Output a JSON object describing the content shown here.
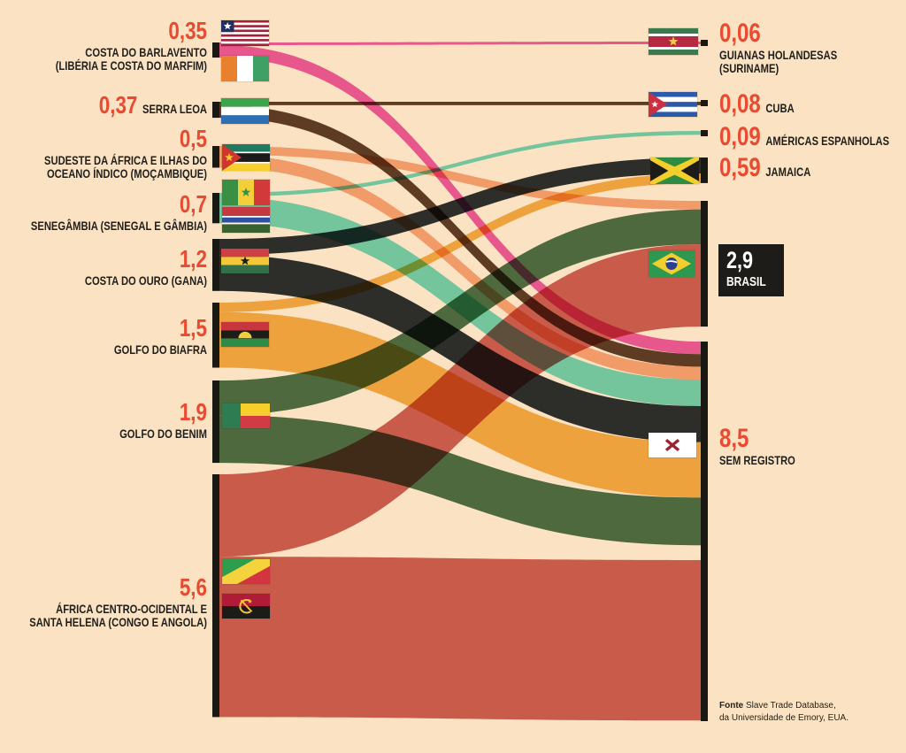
{
  "background": "#fae2c2",
  "palette": {
    "number_color": "#e84b31",
    "label_color": "#201f1b",
    "node_bar_color": "#191813",
    "brasil_box_bg": "#1d1c19",
    "brasil_box_text": "#ffffff"
  },
  "chart_data": {
    "type": "sankey",
    "description": "Fluxos do tráfico de escravos (em milhões de pessoas) de regiões africanas para destinos nas Américas",
    "sources": [
      {
        "id": "barlavento",
        "value": 0.35,
        "value_label": "0,35",
        "label_lines": [
          "COSTA DO BARLAVENTO",
          "(LIBÉRIA E COSTA DO MARFIM)"
        ],
        "flags": [
          "liberia",
          "ivory-coast"
        ],
        "color": "#e8578c",
        "inline": false
      },
      {
        "id": "serra-leoa",
        "value": 0.37,
        "value_label": "0,37",
        "label_lines": [
          "SERRA LEOA"
        ],
        "flags": [
          "sierra-leone"
        ],
        "color": "#5e3b22",
        "inline": true
      },
      {
        "id": "sudeste-africa",
        "value": 0.5,
        "value_label": "0,5",
        "label_lines": [
          "SUDESTE DA ÁFRICA E ILHAS DO",
          "OCEANO ÍNDICO (MOÇAMBIQUE)"
        ],
        "flags": [
          "mozambique"
        ],
        "color": "#f19b68",
        "inline": false
      },
      {
        "id": "senegambia",
        "value": 0.7,
        "value_label": "0,7",
        "label_lines": [
          "SENEGÂMBIA (SENEGAL E GÂMBIA)"
        ],
        "flags": [
          "senegal",
          "gambia"
        ],
        "color": "#74c59c",
        "inline": false
      },
      {
        "id": "costa-do-ouro",
        "value": 1.2,
        "value_label": "1,2",
        "label_lines": [
          "COSTA DO OURO (GANA)"
        ],
        "flags": [
          "ghana"
        ],
        "color": "#2d2c28",
        "inline": false
      },
      {
        "id": "golfo-biafra",
        "value": 1.5,
        "value_label": "1,5",
        "label_lines": [
          "GOLFO DO BIAFRA"
        ],
        "flags": [
          "biafra"
        ],
        "color": "#eea23e",
        "inline": false
      },
      {
        "id": "golfo-benim",
        "value": 1.9,
        "value_label": "1,9",
        "label_lines": [
          "GOLFO DO BENIM"
        ],
        "flags": [
          "benin"
        ],
        "color": "#4d693d",
        "inline": false
      },
      {
        "id": "africa-centro",
        "value": 5.6,
        "value_label": "5,6",
        "label_lines": [
          "ÁFRICA CENTRO-OCIDENTAL E",
          "SANTA HELENA (CONGO E ANGOLA)"
        ],
        "flags": [
          "congo",
          "angola"
        ],
        "color": "#c85b49",
        "inline": false
      }
    ],
    "targets": [
      {
        "id": "suriname",
        "value": 0.06,
        "value_label": "0,06",
        "label_lines": [
          "GUIANAS HOLANDESAS",
          "(SURINAME)"
        ],
        "flags": [
          "suriname"
        ],
        "inline": false,
        "boxed": false
      },
      {
        "id": "cuba",
        "value": 0.08,
        "value_label": "0,08",
        "label_lines": [
          "CUBA"
        ],
        "flags": [
          "cuba"
        ],
        "inline": true,
        "boxed": false
      },
      {
        "id": "americas-espanholas",
        "value": 0.09,
        "value_label": "0,09",
        "label_lines": [
          "AMÉRICAS ESPANHOLAS"
        ],
        "flags": [],
        "inline": true,
        "boxed": false
      },
      {
        "id": "jamaica",
        "value": 0.59,
        "value_label": "0,59",
        "label_lines": [
          "JAMAICA"
        ],
        "flags": [
          "jamaica"
        ],
        "inline": true,
        "boxed": false
      },
      {
        "id": "brasil",
        "value": 2.9,
        "value_label": "2,9",
        "label_lines": [
          "BRASIL"
        ],
        "flags": [
          "brazil"
        ],
        "inline": false,
        "boxed": true
      },
      {
        "id": "sem-registro",
        "value": 8.5,
        "value_label": "8,5",
        "label_lines": [
          "SEM REGISTRO"
        ],
        "flags": [
          "no-record"
        ],
        "inline": false,
        "boxed": false
      }
    ],
    "links": [
      {
        "source": "barlavento",
        "target": "suriname",
        "value": 0.06
      },
      {
        "source": "barlavento",
        "target": "sem-registro",
        "value": 0.29
      },
      {
        "source": "serra-leoa",
        "target": "cuba",
        "value": 0.08
      },
      {
        "source": "serra-leoa",
        "target": "sem-registro",
        "value": 0.29
      },
      {
        "source": "sudeste-africa",
        "target": "brasil",
        "value": 0.2
      },
      {
        "source": "sudeste-africa",
        "target": "sem-registro",
        "value": 0.3
      },
      {
        "source": "senegambia",
        "target": "americas-espanholas",
        "value": 0.09
      },
      {
        "source": "senegambia",
        "target": "sem-registro",
        "value": 0.61
      },
      {
        "source": "costa-do-ouro",
        "target": "jamaica",
        "value": 0.37
      },
      {
        "source": "costa-do-ouro",
        "target": "sem-registro",
        "value": 0.83
      },
      {
        "source": "golfo-biafra",
        "target": "jamaica",
        "value": 0.22
      },
      {
        "source": "golfo-biafra",
        "target": "sem-registro",
        "value": 1.28
      },
      {
        "source": "golfo-benim",
        "target": "brasil",
        "value": 0.8
      },
      {
        "source": "golfo-benim",
        "target": "sem-registro",
        "value": 1.1
      },
      {
        "source": "africa-centro",
        "target": "brasil",
        "value": 1.9
      },
      {
        "source": "africa-centro",
        "target": "sem-registro",
        "value": 3.7
      }
    ]
  },
  "source_note": {
    "bold": "Fonte",
    "line1_rest": "Slave Trade Database,",
    "line2": "da Universidade de Emory, EUA."
  }
}
